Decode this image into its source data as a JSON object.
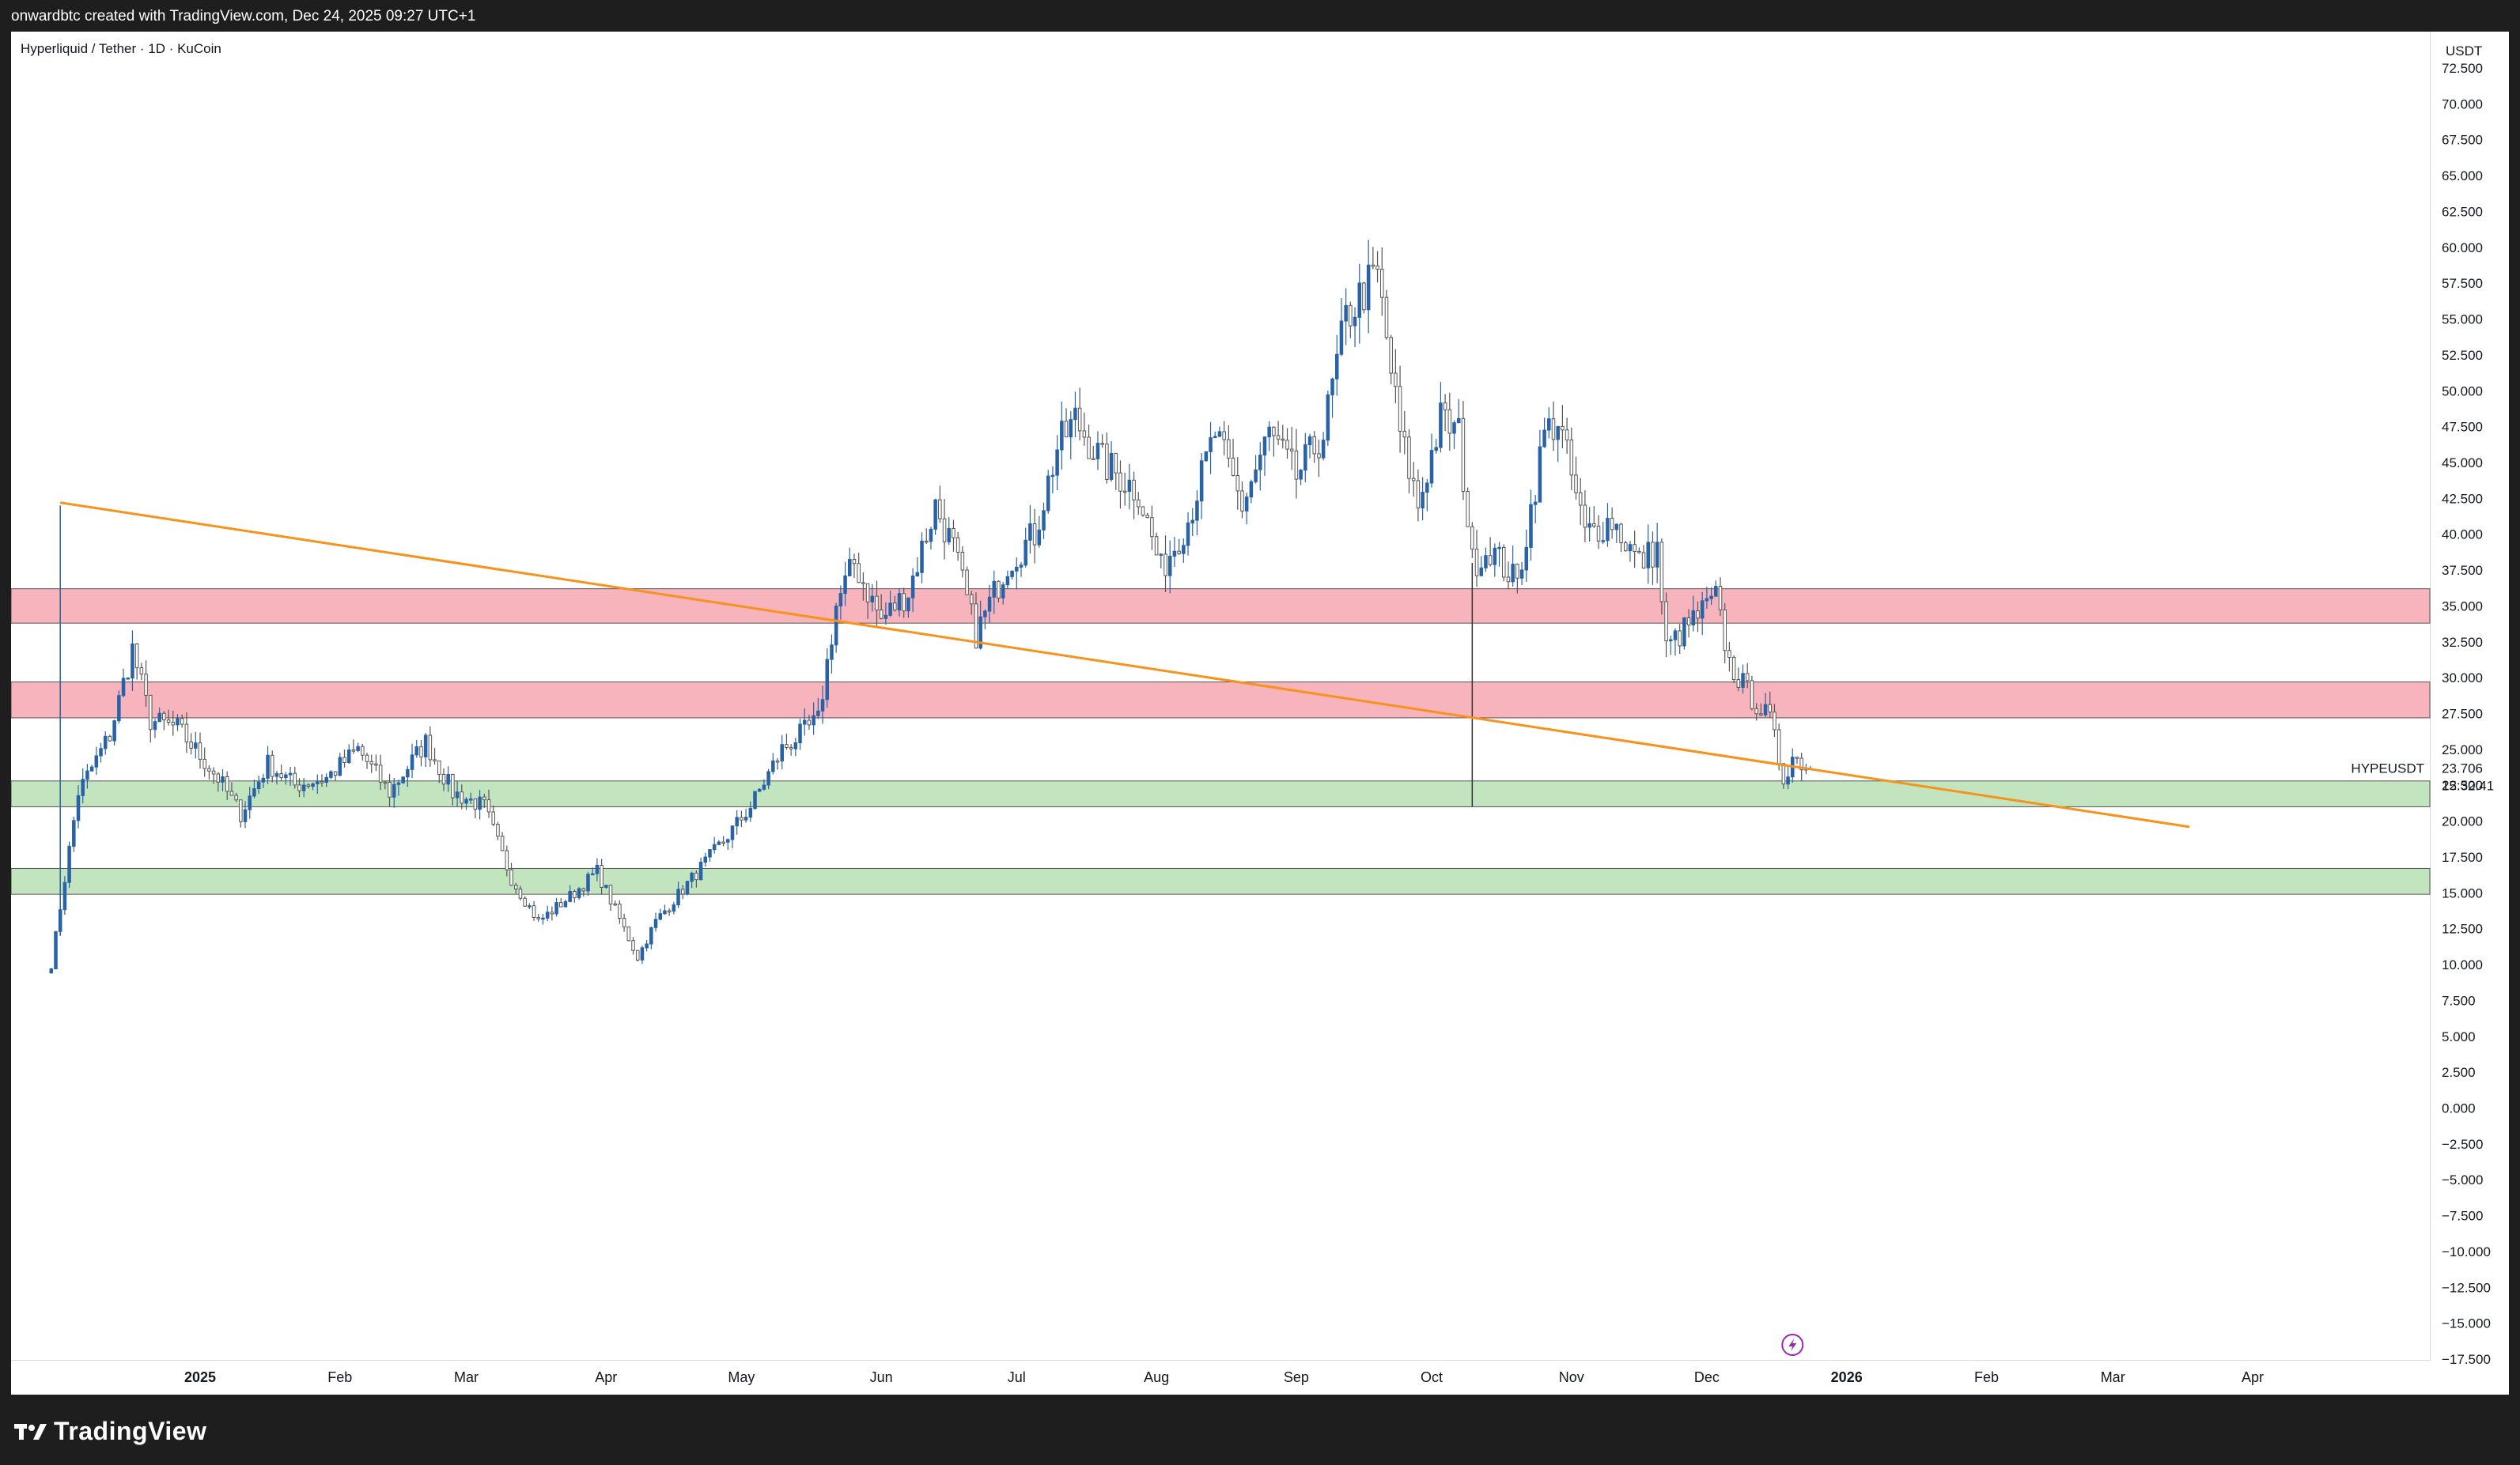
{
  "header": {
    "caption": "onwardbtc created with TradingView.com, Dec 24, 2025 09:27 UTC+1"
  },
  "legend": {
    "title": "Hyperliquid / Tether · 1D · KuCoin"
  },
  "price_scale": {
    "unit": "USDT",
    "symbol": "HYPEUSDT",
    "last_price": "23.706",
    "countdown": "15:32:41"
  },
  "footer": {
    "brand": "TradingView"
  },
  "colors": {
    "up_candle": "#2962a6",
    "down_candle": "#ffffff",
    "trendline": "#f7931a",
    "resistance_zone": "#f8b4bc",
    "support_zone": "#c2e5c0"
  },
  "chart_data": {
    "type": "candlestick",
    "title": "Hyperliquid / Tether · 1D · KuCoin",
    "ylabel": "USDT",
    "ylim": [
      -17.5,
      72.5
    ],
    "y_ticks": [
      "72.500",
      "70.000",
      "67.500",
      "65.000",
      "62.500",
      "60.000",
      "57.500",
      "55.000",
      "52.500",
      "50.000",
      "47.500",
      "45.000",
      "42.500",
      "40.000",
      "37.500",
      "35.000",
      "32.500",
      "30.000",
      "27.500",
      "25.000",
      "22.500",
      "20.000",
      "17.500",
      "15.000",
      "12.500",
      "10.000",
      "7.500",
      "5.000",
      "2.500",
      "0.000",
      "−2.500",
      "−5.000",
      "−7.500",
      "−10.000",
      "−12.500",
      "−15.000",
      "−17.500"
    ],
    "x_ticks": [
      {
        "label": "2025",
        "date": "2025-01-01"
      },
      {
        "label": "Feb",
        "date": "2025-02-01"
      },
      {
        "label": "Mar",
        "date": "2025-03-01"
      },
      {
        "label": "Apr",
        "date": "2025-04-01"
      },
      {
        "label": "May",
        "date": "2025-05-01"
      },
      {
        "label": "Jun",
        "date": "2025-06-01"
      },
      {
        "label": "Jul",
        "date": "2025-07-01"
      },
      {
        "label": "Aug",
        "date": "2025-08-01"
      },
      {
        "label": "Sep",
        "date": "2025-09-01"
      },
      {
        "label": "Oct",
        "date": "2025-10-01"
      },
      {
        "label": "Nov",
        "date": "2025-11-01"
      },
      {
        "label": "Dec",
        "date": "2025-12-01"
      },
      {
        "label": "2026",
        "date": "2026-01-01"
      },
      {
        "label": "Feb",
        "date": "2026-02-01"
      },
      {
        "label": "Mar",
        "date": "2026-03-01"
      },
      {
        "label": "Apr",
        "date": "2026-04-01"
      }
    ],
    "x_range": [
      "2024-11-24",
      "2026-04-01"
    ],
    "price_path": [
      [
        "2024-11-29",
        10.0
      ],
      [
        "2024-12-05",
        22.0
      ],
      [
        "2024-12-12",
        26.0
      ],
      [
        "2024-12-17",
        32.0
      ],
      [
        "2024-12-21",
        27.0
      ],
      [
        "2024-12-27",
        26.5
      ],
      [
        "2025-01-05",
        23.0
      ],
      [
        "2025-01-10",
        20.5
      ],
      [
        "2025-01-16",
        24.0
      ],
      [
        "2025-01-22",
        22.5
      ],
      [
        "2025-01-29",
        23.0
      ],
      [
        "2025-02-05",
        25.0
      ],
      [
        "2025-02-12",
        22.0
      ],
      [
        "2025-02-20",
        25.5
      ],
      [
        "2025-02-26",
        22.0
      ],
      [
        "2025-03-05",
        21.0
      ],
      [
        "2025-03-11",
        16.0
      ],
      [
        "2025-03-17",
        13.0
      ],
      [
        "2025-03-25",
        15.0
      ],
      [
        "2025-03-30",
        16.5
      ],
      [
        "2025-04-05",
        12.5
      ],
      [
        "2025-04-08",
        10.5
      ],
      [
        "2025-04-12",
        13.0
      ],
      [
        "2025-04-20",
        16.0
      ],
      [
        "2025-04-28",
        19.0
      ],
      [
        "2025-05-03",
        21.0
      ],
      [
        "2025-05-10",
        25.0
      ],
      [
        "2025-05-18",
        27.0
      ],
      [
        "2025-05-22",
        35.0
      ],
      [
        "2025-05-26",
        38.0
      ],
      [
        "2025-06-01",
        34.0
      ],
      [
        "2025-06-07",
        36.0
      ],
      [
        "2025-06-13",
        42.0
      ],
      [
        "2025-06-17",
        39.0
      ],
      [
        "2025-06-22",
        33.0
      ],
      [
        "2025-06-29",
        38.0
      ],
      [
        "2025-07-05",
        40.0
      ],
      [
        "2025-07-10",
        46.0
      ],
      [
        "2025-07-14",
        48.0
      ],
      [
        "2025-07-20",
        45.0
      ],
      [
        "2025-07-28",
        43.0
      ],
      [
        "2025-08-02",
        37.5
      ],
      [
        "2025-08-08",
        41.0
      ],
      [
        "2025-08-14",
        47.0
      ],
      [
        "2025-08-20",
        42.0
      ],
      [
        "2025-08-26",
        47.0
      ],
      [
        "2025-09-01",
        44.0
      ],
      [
        "2025-09-07",
        47.0
      ],
      [
        "2025-09-12",
        55.0
      ],
      [
        "2025-09-16",
        57.0
      ],
      [
        "2025-09-19",
        58.0
      ],
      [
        "2025-09-24",
        47.0
      ],
      [
        "2025-09-28",
        42.0
      ],
      [
        "2025-10-03",
        48.0
      ],
      [
        "2025-10-07",
        47.0
      ],
      [
        "2025-10-10",
        38.0
      ],
      [
        "2025-10-14",
        39.0
      ],
      [
        "2025-10-20",
        36.5
      ],
      [
        "2025-10-26",
        47.0
      ],
      [
        "2025-10-29",
        48.0
      ],
      [
        "2025-11-04",
        40.0
      ],
      [
        "2025-11-10",
        41.0
      ],
      [
        "2025-11-16",
        38.0
      ],
      [
        "2025-11-20",
        39.0
      ],
      [
        "2025-11-22",
        32.0
      ],
      [
        "2025-11-28",
        34.0
      ],
      [
        "2025-12-03",
        35.5
      ],
      [
        "2025-12-06",
        31.0
      ],
      [
        "2025-12-10",
        29.0
      ],
      [
        "2025-12-15",
        27.0
      ],
      [
        "2025-12-18",
        23.0
      ],
      [
        "2025-12-20",
        24.5
      ],
      [
        "2025-12-24",
        23.7
      ]
    ],
    "wick_spikes": [
      {
        "date": "2024-12-01",
        "high": 42.0,
        "low": 12.0
      },
      {
        "date": "2025-10-10",
        "high": 38.0,
        "low": 21.0
      }
    ],
    "last_close": 23.706,
    "horizontal_zones": [
      {
        "type": "resistance",
        "low": 33.8,
        "high": 36.2
      },
      {
        "type": "resistance",
        "low": 27.2,
        "high": 29.7
      },
      {
        "type": "support",
        "low": 21.0,
        "high": 22.8
      },
      {
        "type": "support",
        "low": 14.9,
        "high": 16.7
      }
    ],
    "trendline": {
      "start": {
        "date": "2024-12-01",
        "price": 42.2
      },
      "end": {
        "date": "2026-03-18",
        "price": 19.6
      }
    }
  }
}
